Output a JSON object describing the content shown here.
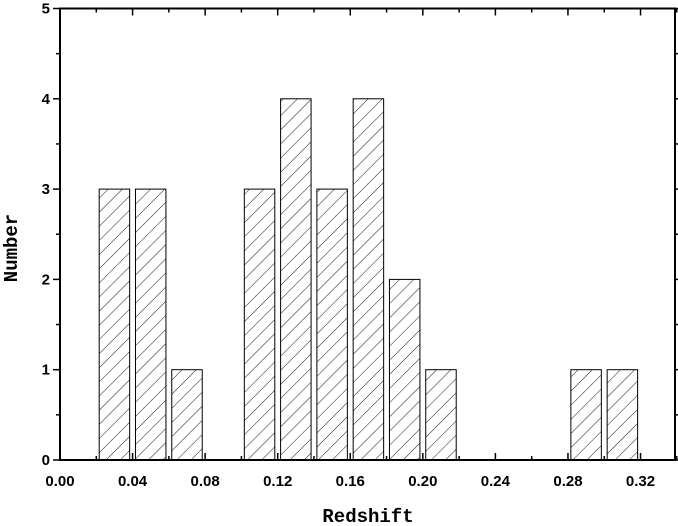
{
  "chart_data": {
    "type": "bar",
    "title": "",
    "xlabel": "Redshift",
    "ylabel": "Number",
    "xlim": [
      0,
      0.339
    ],
    "ylim": [
      0,
      5
    ],
    "grid": false,
    "bar_fill": "diagonal hatch",
    "colors": {
      "bar_edge": "#000000",
      "hatch": "#000000",
      "background": "#ffffff"
    },
    "x_ticks": [
      "0.00",
      "0.04",
      "0.08",
      "0.12",
      "0.16",
      "0.20",
      "0.24",
      "0.28",
      "0.32"
    ],
    "y_ticks": [
      "0",
      "1",
      "2",
      "3",
      "4",
      "5"
    ],
    "bin_width": 0.02,
    "x": [
      0.03,
      0.05,
      0.07,
      0.11,
      0.13,
      0.15,
      0.17,
      0.19,
      0.21,
      0.29,
      0.31
    ],
    "values": [
      3,
      3,
      1,
      3,
      4,
      3,
      4,
      2,
      1,
      1,
      1
    ]
  }
}
